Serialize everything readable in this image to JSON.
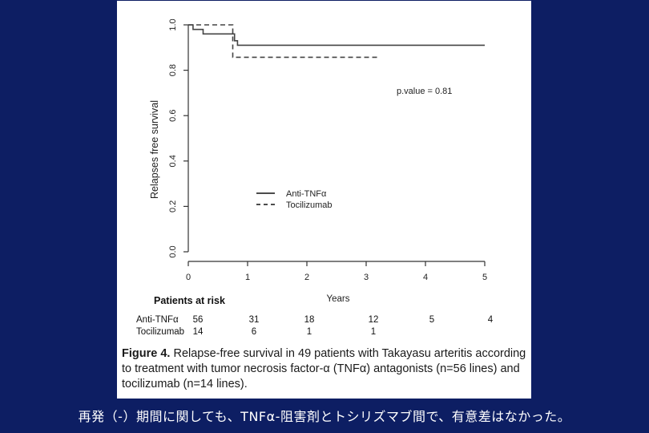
{
  "slide": {
    "background": "#0d1e63",
    "caption_text": "再発（-）期間に関しても、TNFα-阻害剤とトシリズマブ間で、有意差はなかった。"
  },
  "figure": {
    "caption_bold": "Figure 4.",
    "caption_rest": " Relapse-free survival in 49 patients with Takayasu arteritis according to treatment with tumor necrosis factor-α (TNFα) antagonists (n=56 lines) and tocilizumab (n=14 lines)."
  },
  "chart_data": {
    "type": "line",
    "subtype": "kaplan-meier step",
    "ylabel": "Relapses free survival",
    "xlabel": "Years",
    "xlim": [
      0,
      5
    ],
    "ylim": [
      0,
      1
    ],
    "x_ticks": [
      "0",
      "1",
      "2",
      "3",
      "4",
      "5"
    ],
    "y_ticks": [
      "0.0",
      "0.2",
      "0.4",
      "0.6",
      "0.8",
      "1.0"
    ],
    "annotation": "p.value = 0.81",
    "legend_position": "center-left",
    "series": [
      {
        "name": "Anti-TNFα",
        "style": "solid",
        "steps": [
          [
            0,
            1.0
          ],
          [
            0.08,
            0.98
          ],
          [
            0.25,
            0.96
          ],
          [
            0.78,
            0.93
          ],
          [
            0.83,
            0.91
          ],
          [
            5.0,
            0.91
          ]
        ]
      },
      {
        "name": "Tocilizumab",
        "style": "dashed",
        "steps": [
          [
            0,
            1.0
          ],
          [
            0.75,
            0.857
          ],
          [
            3.2,
            0.857
          ]
        ]
      }
    ],
    "risk_table": {
      "title": "Patients at risk",
      "rows": [
        {
          "label": "Anti-TNFα",
          "values": [
            "56",
            "31",
            "18",
            "12",
            "5",
            "4"
          ]
        },
        {
          "label": "Tocilizumab",
          "values": [
            "14",
            "6",
            "1",
            "1",
            "",
            ""
          ]
        }
      ]
    }
  }
}
